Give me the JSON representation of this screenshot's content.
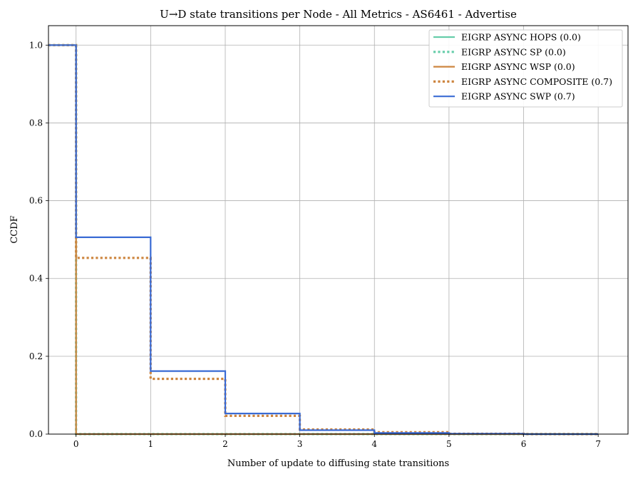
{
  "chart_data": {
    "type": "line",
    "subtype": "step-ccdf",
    "title": "U→D state transitions per Node - All Metrics - AS6461 - Advertise",
    "xlabel": "Number of update to diffusing state transitions",
    "ylabel": "CCDF",
    "xlim": [
      -0.37,
      7.4
    ],
    "ylim": [
      0,
      1.05
    ],
    "xticks": [
      0,
      1,
      2,
      3,
      4,
      5,
      6,
      7
    ],
    "yticks": [
      0.0,
      0.2,
      0.4,
      0.6,
      0.8,
      1.0
    ],
    "xtick_labels": [
      "0",
      "1",
      "2",
      "3",
      "4",
      "5",
      "6",
      "7"
    ],
    "ytick_labels": [
      "0.0",
      "0.2",
      "0.4",
      "0.6",
      "0.8",
      "1.0"
    ],
    "grid": true,
    "legend_position": "top-right",
    "series": [
      {
        "name": "EIGRP ASYNC HOPS (0.0)",
        "color": "#66cdaa",
        "style": "solid",
        "x": [
          -0.37,
          0,
          0,
          7
        ],
        "y": [
          1.0,
          1.0,
          0.0,
          0.0
        ]
      },
      {
        "name": "EIGRP ASYNC SP (0.0)",
        "color": "#66cdaa",
        "style": "dotted",
        "x": [
          -0.37,
          0,
          0,
          7
        ],
        "y": [
          1.0,
          1.0,
          0.0,
          0.0
        ]
      },
      {
        "name": "EIGRP ASYNC WSP (0.0)",
        "color": "#cd853f",
        "style": "solid",
        "x": [
          -0.37,
          0,
          0,
          7
        ],
        "y": [
          1.0,
          1.0,
          0.0,
          0.0
        ]
      },
      {
        "name": "EIGRP ASYNC COMPOSITE (0.7)",
        "color": "#cd853f",
        "style": "dotted",
        "x": [
          -0.37,
          0,
          0,
          1,
          1,
          2,
          2,
          3,
          3,
          4,
          4,
          5,
          5,
          6,
          6,
          7
        ],
        "y": [
          1.0,
          1.0,
          0.453,
          0.453,
          0.142,
          0.142,
          0.047,
          0.047,
          0.012,
          0.012,
          0.005,
          0.005,
          0.001,
          0.001,
          0.0,
          0.0
        ]
      },
      {
        "name": "EIGRP ASYNC SWP (0.7)",
        "color": "#3a6bd4",
        "style": "solid",
        "x": [
          -0.37,
          0,
          0,
          1,
          1,
          2,
          2,
          3,
          3,
          4,
          4,
          5,
          5,
          6,
          6,
          7
        ],
        "y": [
          1.0,
          1.0,
          0.506,
          0.506,
          0.162,
          0.162,
          0.053,
          0.053,
          0.01,
          0.01,
          0.003,
          0.003,
          0.001,
          0.001,
          0.0,
          0.0
        ]
      }
    ]
  }
}
